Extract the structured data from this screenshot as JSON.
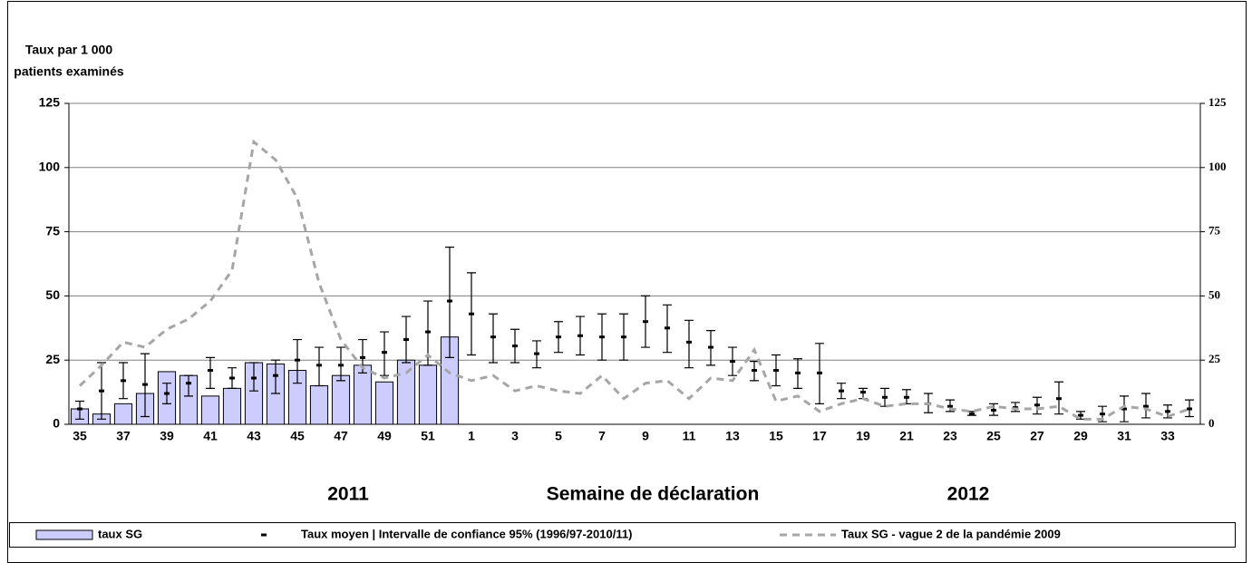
{
  "chart_data": {
    "type": "bar",
    "y_label_lines": [
      "Taux par 1 000",
      "patients examinés"
    ],
    "x_label": "Semaine de déclaration",
    "year_labels": [
      "2011",
      "2012"
    ],
    "categories": [
      "35",
      null,
      "37",
      null,
      "39",
      null,
      "41",
      null,
      "43",
      null,
      "45",
      null,
      "47",
      null,
      "49",
      null,
      "51",
      null,
      "1",
      null,
      "3",
      null,
      "5",
      null,
      "7",
      null,
      "9",
      null,
      "11",
      null,
      "13",
      null,
      "15",
      null,
      "17",
      null,
      "19",
      null,
      "21",
      null,
      "23",
      null,
      "25",
      null,
      "27",
      null,
      "29",
      null,
      "31",
      null,
      "33",
      null
    ],
    "series": [
      {
        "name": "taux SG",
        "type": "bar",
        "color": "#ccccff",
        "values": [
          6,
          4,
          8,
          12,
          20.5,
          19,
          11,
          14,
          24,
          23.5,
          21,
          15,
          19,
          23,
          16.5,
          25,
          23,
          34,
          null,
          null,
          null,
          null,
          null,
          null,
          null,
          null,
          null,
          null,
          null,
          null,
          null,
          null,
          null,
          null,
          null,
          null,
          null,
          null,
          null,
          null,
          null,
          null,
          null,
          null,
          null,
          null,
          null,
          null,
          null,
          null,
          null,
          null
        ]
      },
      {
        "name": "Taux moyen | Intervalle de confiance 95% (1996/97-2010/11)",
        "type": "errorbar",
        "color": "#000000",
        "values": [
          6,
          13,
          17,
          15.5,
          12,
          16,
          21,
          18,
          18,
          19,
          25,
          23,
          23,
          26,
          28,
          33,
          36,
          48,
          43,
          34,
          30.5,
          27.5,
          34,
          34.5,
          34,
          34,
          40,
          37.5,
          32,
          30,
          24.5,
          21,
          21,
          20,
          20,
          13,
          12.5,
          10.5,
          10.5,
          8,
          7,
          4,
          5.5,
          6.5,
          7.5,
          10,
          3.5,
          4,
          6,
          7,
          5,
          6
        ],
        "lower": [
          2,
          2,
          10,
          3,
          8,
          11,
          14,
          14,
          13,
          12,
          16,
          15,
          17,
          20,
          19,
          24,
          23,
          26,
          27,
          24,
          24,
          22,
          28,
          27,
          25,
          25,
          30,
          28,
          22,
          23,
          19,
          17,
          15,
          14,
          8,
          10,
          10,
          7,
          8,
          4.5,
          5,
          3.5,
          3.5,
          5,
          4,
          4,
          2,
          1,
          1,
          2.5,
          2.5,
          3
        ],
        "upper": [
          9,
          24,
          24,
          27.5,
          16,
          19,
          26,
          22,
          24,
          25,
          33,
          30,
          30,
          33,
          36,
          42,
          48,
          69,
          59,
          43,
          37,
          32.5,
          40,
          42,
          43,
          43,
          50,
          46.5,
          40.5,
          36.5,
          30,
          24.5,
          27,
          25.5,
          31.5,
          16,
          14,
          14,
          13.5,
          12,
          9.5,
          5,
          8,
          8.5,
          10.5,
          16.5,
          5,
          7,
          11,
          12,
          7.5,
          9.5
        ]
      },
      {
        "name": "Taux SG - vague 2 de la pandémie 2009",
        "type": "line",
        "color": "#a6a6a6",
        "dashed": true,
        "values": [
          15,
          23,
          32,
          30,
          37,
          41,
          48,
          60,
          110,
          103,
          88,
          55,
          33,
          22,
          18,
          20,
          27,
          20,
          17,
          19,
          13,
          15,
          13,
          12,
          19,
          10,
          16,
          17,
          10,
          18,
          17,
          29,
          9,
          11,
          5,
          8,
          10,
          7,
          8,
          8,
          6,
          5,
          7,
          6,
          6,
          7,
          2,
          2,
          7,
          6,
          3,
          6
        ]
      }
    ],
    "ylim": [
      0,
      125
    ],
    "yticks": [
      0,
      25,
      50,
      75,
      100,
      125
    ],
    "y2lim": [
      0,
      125
    ],
    "y2ticks": [
      0,
      25,
      50,
      75,
      100,
      125
    ],
    "grid": true
  }
}
